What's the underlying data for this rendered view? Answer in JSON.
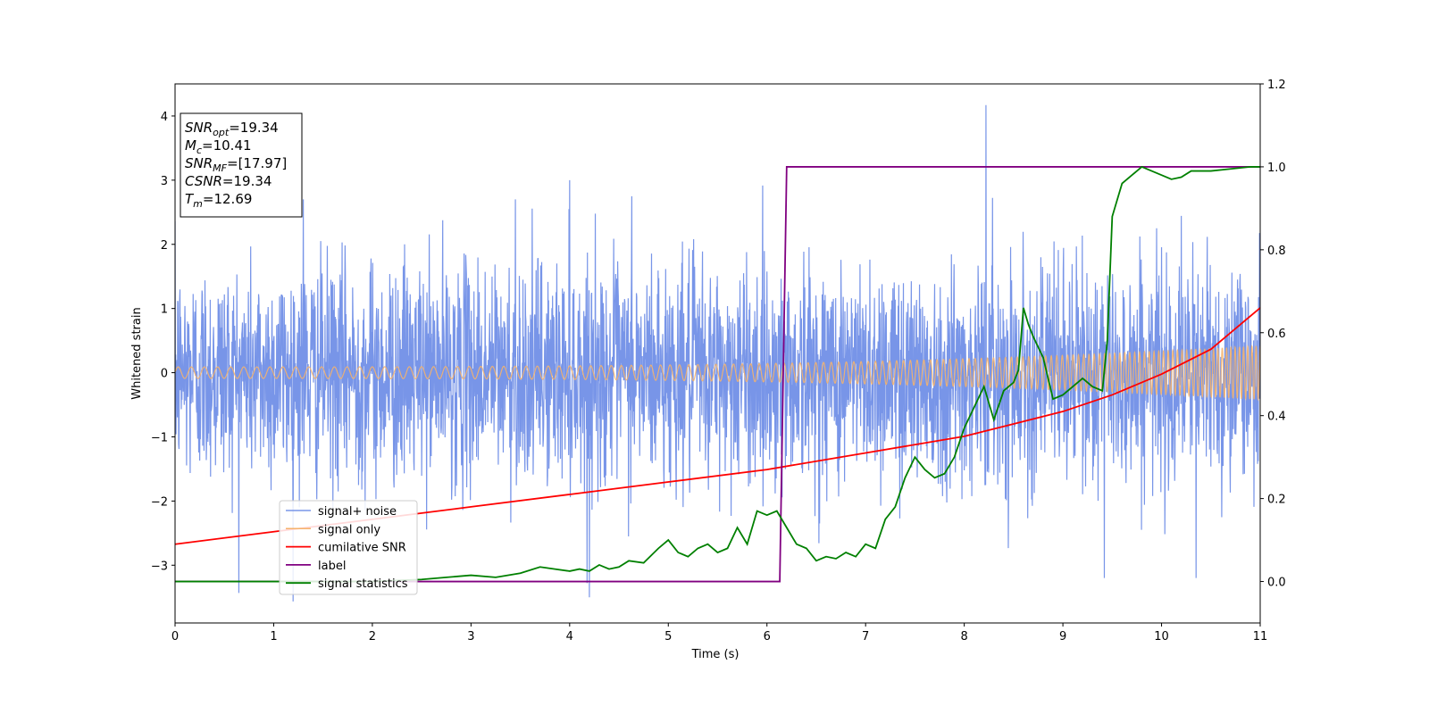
{
  "chart_data": {
    "type": "line",
    "xlabel": "Time (s)",
    "ylabel": "Whitened strain",
    "xlim": [
      0,
      11
    ],
    "ylim": [
      -3.9,
      4.5
    ],
    "y2lim": [
      -0.1,
      1.2
    ],
    "xticks": [
      "0",
      "1",
      "2",
      "3",
      "4",
      "5",
      "6",
      "7",
      "8",
      "9",
      "10",
      "11"
    ],
    "yticks": [
      "−3",
      "−2",
      "−1",
      "0",
      "1",
      "2",
      "3",
      "4"
    ],
    "y2ticks": [
      "0.0",
      "0.2",
      "0.4",
      "0.6",
      "0.8",
      "1.0",
      "1.2"
    ],
    "grid": false,
    "legend_position": "lower-left",
    "annotation": {
      "lines": [
        {
          "name": "SNR",
          "sub": "opt",
          "value": "=19.34"
        },
        {
          "name": "M",
          "sub": "c",
          "value": "=10.41"
        },
        {
          "name": "SNR",
          "sub": "MF",
          "value": "=[17.97]"
        },
        {
          "name": "CSNR",
          "sub": "",
          "value": "=19.34"
        },
        {
          "name": "T",
          "sub": "m",
          "value": "=12.69"
        }
      ]
    },
    "series": [
      {
        "name": "signal+ noise",
        "axis": "left",
        "color": "#7895e8",
        "kind": "noisy",
        "std": 0.85,
        "notable_points": [
          [
            4.2,
            -3.5
          ],
          [
            8.22,
            4.17
          ],
          [
            1.3,
            2.7
          ],
          [
            3.45,
            2.7
          ],
          [
            4.0,
            3.0
          ],
          [
            4.63,
            2.75
          ],
          [
            9.42,
            -3.2
          ],
          [
            10.35,
            -3.2
          ]
        ]
      },
      {
        "name": "signal only",
        "axis": "left",
        "color": "#f5b26b",
        "kind": "chirp",
        "amplitude_start": 0.09,
        "amplitude_end": 0.42
      },
      {
        "name": "cumilative SNR",
        "axis": "right",
        "color": "#ff0000",
        "x": [
          0,
          1,
          2,
          3,
          4,
          5,
          6,
          7,
          8,
          8.5,
          9,
          9.5,
          10,
          10.5,
          11
        ],
        "y": [
          0.09,
          0.12,
          0.15,
          0.18,
          0.21,
          0.24,
          0.27,
          0.31,
          0.35,
          0.38,
          0.41,
          0.45,
          0.5,
          0.56,
          0.66
        ]
      },
      {
        "name": "label",
        "axis": "right",
        "color": "#800080",
        "x": [
          0,
          6.13,
          6.2,
          11
        ],
        "y": [
          0.0,
          0.0,
          1.0,
          1.0
        ]
      },
      {
        "name": "signal statistics",
        "axis": "right",
        "color": "#008000",
        "x": [
          0,
          0.5,
          1,
          1.5,
          2,
          2.5,
          2.75,
          3,
          3.25,
          3.5,
          3.7,
          3.85,
          4,
          4.1,
          4.2,
          4.3,
          4.4,
          4.5,
          4.6,
          4.75,
          4.9,
          5.0,
          5.1,
          5.2,
          5.3,
          5.4,
          5.5,
          5.6,
          5.7,
          5.8,
          5.9,
          6.0,
          6.1,
          6.2,
          6.3,
          6.4,
          6.5,
          6.6,
          6.7,
          6.8,
          6.9,
          7.0,
          7.1,
          7.2,
          7.3,
          7.4,
          7.5,
          7.6,
          7.7,
          7.8,
          7.9,
          8.0,
          8.1,
          8.2,
          8.3,
          8.4,
          8.5,
          8.55,
          8.6,
          8.65,
          8.7,
          8.8,
          8.9,
          9.0,
          9.1,
          9.2,
          9.3,
          9.4,
          9.45,
          9.5,
          9.6,
          9.7,
          9.8,
          9.9,
          10.0,
          10.1,
          10.2,
          10.3,
          10.5,
          10.7,
          10.9,
          11
        ],
        "y": [
          0.0,
          0.0,
          0.0,
          0.0,
          0.0,
          0.005,
          0.01,
          0.015,
          0.01,
          0.02,
          0.035,
          0.03,
          0.025,
          0.03,
          0.025,
          0.04,
          0.03,
          0.035,
          0.05,
          0.045,
          0.08,
          0.1,
          0.07,
          0.06,
          0.08,
          0.09,
          0.07,
          0.08,
          0.13,
          0.09,
          0.17,
          0.16,
          0.17,
          0.13,
          0.09,
          0.08,
          0.05,
          0.06,
          0.055,
          0.07,
          0.06,
          0.09,
          0.08,
          0.15,
          0.18,
          0.25,
          0.3,
          0.27,
          0.25,
          0.26,
          0.3,
          0.37,
          0.42,
          0.47,
          0.39,
          0.46,
          0.48,
          0.51,
          0.66,
          0.62,
          0.59,
          0.54,
          0.44,
          0.45,
          0.47,
          0.49,
          0.47,
          0.46,
          0.58,
          0.88,
          0.96,
          0.98,
          1.0,
          0.99,
          0.98,
          0.97,
          0.975,
          0.99,
          0.99,
          0.995,
          1.0,
          1.0
        ]
      }
    ]
  }
}
